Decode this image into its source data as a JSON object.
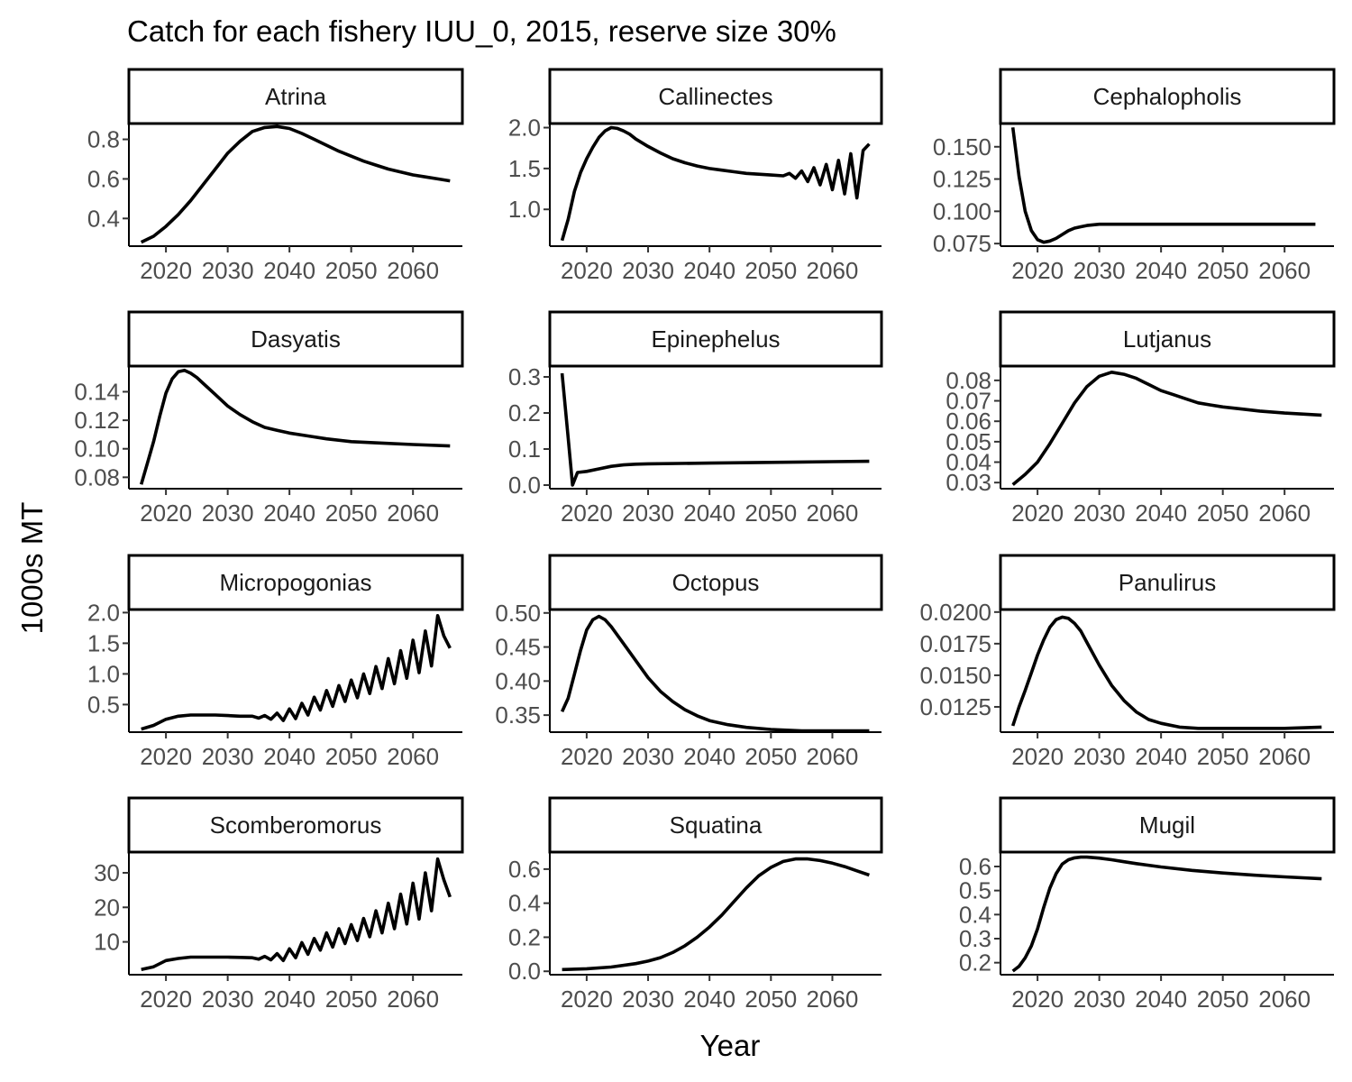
{
  "chart_data": {
    "type": "line",
    "title": "Catch for each fishery IUU_0, 2015, reserve size 30%",
    "xlabel": "Year",
    "ylabel": "1000s MT",
    "grid": false,
    "legend": "none",
    "x_ticks": [
      2020,
      2030,
      2040,
      2050,
      2060
    ],
    "x_tick_labels": [
      "2020",
      "2030",
      "2040",
      "2050",
      "2060"
    ],
    "xlim": [
      2014,
      2068
    ],
    "line_color": "#000000",
    "panels": [
      {
        "name": "Atrina",
        "ylim": [
          0.26,
          0.88
        ],
        "y_ticks": [
          0.4,
          0.6,
          0.8
        ],
        "y_tick_labels": [
          "0.4",
          "0.6",
          "0.8"
        ],
        "x": [
          2016,
          2018,
          2020,
          2022,
          2024,
          2026,
          2028,
          2030,
          2032,
          2034,
          2036,
          2038,
          2040,
          2042,
          2044,
          2046,
          2048,
          2050,
          2052,
          2054,
          2056,
          2058,
          2060,
          2062,
          2064,
          2066
        ],
        "y": [
          0.28,
          0.31,
          0.36,
          0.42,
          0.49,
          0.57,
          0.65,
          0.73,
          0.79,
          0.84,
          0.86,
          0.865,
          0.855,
          0.83,
          0.8,
          0.77,
          0.74,
          0.715,
          0.69,
          0.67,
          0.65,
          0.635,
          0.62,
          0.61,
          0.6,
          0.59
        ]
      },
      {
        "name": "Callinectes",
        "ylim": [
          0.55,
          2.05
        ],
        "y_ticks": [
          1.0,
          1.5,
          2.0
        ],
        "y_tick_labels": [
          "1.0",
          "1.5",
          "2.0"
        ],
        "x": [
          2016,
          2017,
          2018,
          2019,
          2020,
          2021,
          2022,
          2023,
          2024,
          2025,
          2026,
          2027,
          2028,
          2030,
          2032,
          2034,
          2036,
          2038,
          2040,
          2042,
          2044,
          2046,
          2048,
          2050,
          2052,
          2053,
          2054,
          2055,
          2056,
          2057,
          2058,
          2059,
          2060,
          2061,
          2062,
          2063,
          2064,
          2065,
          2066
        ],
        "y": [
          0.62,
          0.88,
          1.22,
          1.45,
          1.62,
          1.76,
          1.88,
          1.96,
          2.0,
          1.99,
          1.96,
          1.92,
          1.86,
          1.77,
          1.69,
          1.62,
          1.57,
          1.53,
          1.5,
          1.48,
          1.46,
          1.44,
          1.43,
          1.42,
          1.41,
          1.44,
          1.38,
          1.47,
          1.34,
          1.51,
          1.3,
          1.55,
          1.24,
          1.6,
          1.19,
          1.68,
          1.14,
          1.72,
          1.8
        ]
      },
      {
        "name": "Cephalopholis",
        "ylim": [
          0.073,
          0.168
        ],
        "y_ticks": [
          0.075,
          0.1,
          0.125,
          0.15
        ],
        "y_tick_labels": [
          "0.075",
          "0.100",
          "0.125",
          "0.150"
        ],
        "x": [
          2016,
          2017,
          2018,
          2019,
          2020,
          2021,
          2022,
          2023,
          2024,
          2025,
          2026,
          2027,
          2028,
          2030,
          2035,
          2040,
          2045,
          2050,
          2055,
          2060,
          2065
        ],
        "y": [
          0.165,
          0.127,
          0.1,
          0.085,
          0.078,
          0.076,
          0.077,
          0.079,
          0.082,
          0.085,
          0.087,
          0.088,
          0.089,
          0.09,
          0.09,
          0.09,
          0.09,
          0.09,
          0.09,
          0.09,
          0.09
        ]
      },
      {
        "name": "Dasyatis",
        "ylim": [
          0.072,
          0.158
        ],
        "y_ticks": [
          0.08,
          0.1,
          0.12,
          0.14
        ],
        "y_tick_labels": [
          "0.08",
          "0.10",
          "0.12",
          "0.14"
        ],
        "x": [
          2016,
          2017,
          2018,
          2019,
          2020,
          2021,
          2022,
          2023,
          2024,
          2025,
          2026,
          2028,
          2030,
          2032,
          2034,
          2036,
          2038,
          2040,
          2043,
          2046,
          2050,
          2055,
          2060,
          2066
        ],
        "y": [
          0.075,
          0.09,
          0.105,
          0.123,
          0.139,
          0.149,
          0.154,
          0.155,
          0.153,
          0.15,
          0.146,
          0.138,
          0.13,
          0.124,
          0.119,
          0.115,
          0.113,
          0.111,
          0.109,
          0.107,
          0.105,
          0.104,
          0.103,
          0.102
        ]
      },
      {
        "name": "Epinephelus",
        "ylim": [
          -0.01,
          0.33
        ],
        "y_ticks": [
          0.0,
          0.1,
          0.2,
          0.3
        ],
        "y_tick_labels": [
          "0.0",
          "0.1",
          "0.2",
          "0.3"
        ],
        "x": [
          2016,
          2017,
          2017.7,
          2018.5,
          2020,
          2022,
          2024,
          2026,
          2028,
          2030,
          2035,
          2040,
          2045,
          2050,
          2055,
          2060,
          2066
        ],
        "y": [
          0.31,
          0.13,
          0.0,
          0.035,
          0.038,
          0.045,
          0.052,
          0.056,
          0.058,
          0.059,
          0.06,
          0.061,
          0.062,
          0.063,
          0.064,
          0.065,
          0.066
        ]
      },
      {
        "name": "Lutjanus",
        "ylim": [
          0.027,
          0.087
        ],
        "y_ticks": [
          0.03,
          0.04,
          0.05,
          0.06,
          0.07,
          0.08
        ],
        "y_tick_labels": [
          "0.03",
          "0.04",
          "0.05",
          "0.06",
          "0.07",
          "0.08"
        ],
        "x": [
          2016,
          2018,
          2020,
          2022,
          2024,
          2026,
          2028,
          2030,
          2032,
          2034,
          2036,
          2038,
          2040,
          2042,
          2044,
          2046,
          2048,
          2050,
          2053,
          2056,
          2060,
          2066
        ],
        "y": [
          0.029,
          0.034,
          0.04,
          0.049,
          0.059,
          0.069,
          0.077,
          0.082,
          0.084,
          0.083,
          0.081,
          0.078,
          0.075,
          0.073,
          0.071,
          0.069,
          0.068,
          0.067,
          0.066,
          0.065,
          0.064,
          0.063
        ]
      },
      {
        "name": "Micropogonias",
        "ylim": [
          0.05,
          2.05
        ],
        "y_ticks": [
          0.5,
          1.0,
          1.5,
          2.0
        ],
        "y_tick_labels": [
          "0.5",
          "1.0",
          "1.5",
          "2.0"
        ],
        "x": [
          2016,
          2018,
          2020,
          2022,
          2024,
          2026,
          2028,
          2030,
          2032,
          2034,
          2035,
          2036,
          2037,
          2038,
          2039,
          2040,
          2041,
          2042,
          2043,
          2044,
          2045,
          2046,
          2047,
          2048,
          2049,
          2050,
          2051,
          2052,
          2053,
          2054,
          2055,
          2056,
          2057,
          2058,
          2059,
          2060,
          2061,
          2062,
          2063,
          2064,
          2065,
          2066
        ],
        "y": [
          0.1,
          0.16,
          0.26,
          0.31,
          0.33,
          0.33,
          0.33,
          0.32,
          0.31,
          0.31,
          0.28,
          0.32,
          0.26,
          0.36,
          0.24,
          0.43,
          0.27,
          0.52,
          0.33,
          0.62,
          0.41,
          0.73,
          0.47,
          0.81,
          0.55,
          0.9,
          0.61,
          1.0,
          0.68,
          1.12,
          0.76,
          1.25,
          0.84,
          1.38,
          0.93,
          1.55,
          1.02,
          1.7,
          1.13,
          1.95,
          1.62,
          1.42
        ]
      },
      {
        "name": "Octopus",
        "ylim": [
          0.325,
          0.505
        ],
        "y_ticks": [
          0.35,
          0.4,
          0.45,
          0.5
        ],
        "y_tick_labels": [
          "0.35",
          "0.40",
          "0.45",
          "0.50"
        ],
        "x": [
          2016,
          2017,
          2018,
          2019,
          2020,
          2021,
          2022,
          2023,
          2024,
          2026,
          2028,
          2030,
          2032,
          2034,
          2036,
          2038,
          2040,
          2043,
          2046,
          2050,
          2055,
          2060,
          2066
        ],
        "y": [
          0.355,
          0.375,
          0.41,
          0.445,
          0.475,
          0.49,
          0.495,
          0.49,
          0.48,
          0.455,
          0.43,
          0.405,
          0.385,
          0.37,
          0.358,
          0.349,
          0.342,
          0.336,
          0.332,
          0.329,
          0.327,
          0.327,
          0.327
        ]
      },
      {
        "name": "Panulirus",
        "ylim": [
          0.0105,
          0.0202
        ],
        "y_ticks": [
          0.0125,
          0.015,
          0.0175,
          0.02
        ],
        "y_tick_labels": [
          "0.0125",
          "0.0150",
          "0.0175",
          "0.0200"
        ],
        "x": [
          2016,
          2017,
          2018,
          2019,
          2020,
          2021,
          2022,
          2023,
          2024,
          2025,
          2026,
          2027,
          2028,
          2030,
          2032,
          2034,
          2036,
          2038,
          2040,
          2043,
          2046,
          2050,
          2055,
          2060,
          2066
        ],
        "y": [
          0.011,
          0.0125,
          0.0138,
          0.0152,
          0.0166,
          0.0178,
          0.0188,
          0.0194,
          0.0196,
          0.0195,
          0.0191,
          0.0185,
          0.0176,
          0.0158,
          0.0142,
          0.013,
          0.0121,
          0.0115,
          0.0112,
          0.0109,
          0.0108,
          0.0108,
          0.0108,
          0.0108,
          0.0109
        ]
      },
      {
        "name": "Scomberomorus",
        "ylim": [
          0.5,
          36
        ],
        "y_ticks": [
          10,
          20,
          30
        ],
        "y_tick_labels": [
          "10",
          "20",
          "30"
        ],
        "x": [
          2016,
          2018,
          2020,
          2022,
          2024,
          2026,
          2028,
          2030,
          2032,
          2034,
          2035,
          2036,
          2037,
          2038,
          2039,
          2040,
          2041,
          2042,
          2043,
          2044,
          2045,
          2046,
          2047,
          2048,
          2049,
          2050,
          2051,
          2052,
          2053,
          2054,
          2055,
          2056,
          2057,
          2058,
          2059,
          2060,
          2061,
          2062,
          2063,
          2064,
          2065,
          2066
        ],
        "y": [
          2.0,
          2.8,
          4.6,
          5.2,
          5.6,
          5.6,
          5.6,
          5.6,
          5.5,
          5.4,
          5.0,
          5.8,
          4.8,
          6.6,
          4.6,
          8.0,
          5.4,
          9.8,
          6.4,
          11.0,
          7.6,
          12.6,
          8.5,
          13.8,
          9.5,
          15.0,
          10.4,
          16.8,
          11.5,
          19.0,
          12.6,
          21.2,
          13.8,
          23.8,
          15.2,
          27.0,
          16.6,
          30.0,
          19.0,
          34.0,
          28.0,
          23.0
        ]
      },
      {
        "name": "Squatina",
        "ylim": [
          -0.02,
          0.7
        ],
        "y_ticks": [
          0.0,
          0.2,
          0.4,
          0.6
        ],
        "y_tick_labels": [
          "0.0",
          "0.2",
          "0.4",
          "0.6"
        ],
        "x": [
          2016,
          2020,
          2024,
          2028,
          2030,
          2032,
          2034,
          2036,
          2038,
          2040,
          2042,
          2044,
          2046,
          2048,
          2050,
          2052,
          2054,
          2056,
          2058,
          2060,
          2062,
          2064,
          2066
        ],
        "y": [
          0.01,
          0.015,
          0.025,
          0.045,
          0.06,
          0.08,
          0.11,
          0.15,
          0.2,
          0.26,
          0.33,
          0.41,
          0.49,
          0.56,
          0.61,
          0.645,
          0.66,
          0.66,
          0.65,
          0.635,
          0.615,
          0.59,
          0.565
        ]
      },
      {
        "name": "Mugil",
        "ylim": [
          0.15,
          0.66
        ],
        "y_ticks": [
          0.2,
          0.3,
          0.4,
          0.5,
          0.6
        ],
        "y_tick_labels": [
          "0.2",
          "0.3",
          "0.4",
          "0.5",
          "0.6"
        ],
        "x": [
          2016,
          2017,
          2018,
          2019,
          2020,
          2021,
          2022,
          2023,
          2024,
          2025,
          2026,
          2027,
          2028,
          2030,
          2032,
          2034,
          2036,
          2040,
          2045,
          2050,
          2055,
          2060,
          2066
        ],
        "y": [
          0.165,
          0.185,
          0.22,
          0.27,
          0.34,
          0.43,
          0.51,
          0.57,
          0.61,
          0.628,
          0.636,
          0.639,
          0.639,
          0.635,
          0.628,
          0.62,
          0.612,
          0.598,
          0.584,
          0.573,
          0.564,
          0.557,
          0.549
        ]
      }
    ]
  }
}
